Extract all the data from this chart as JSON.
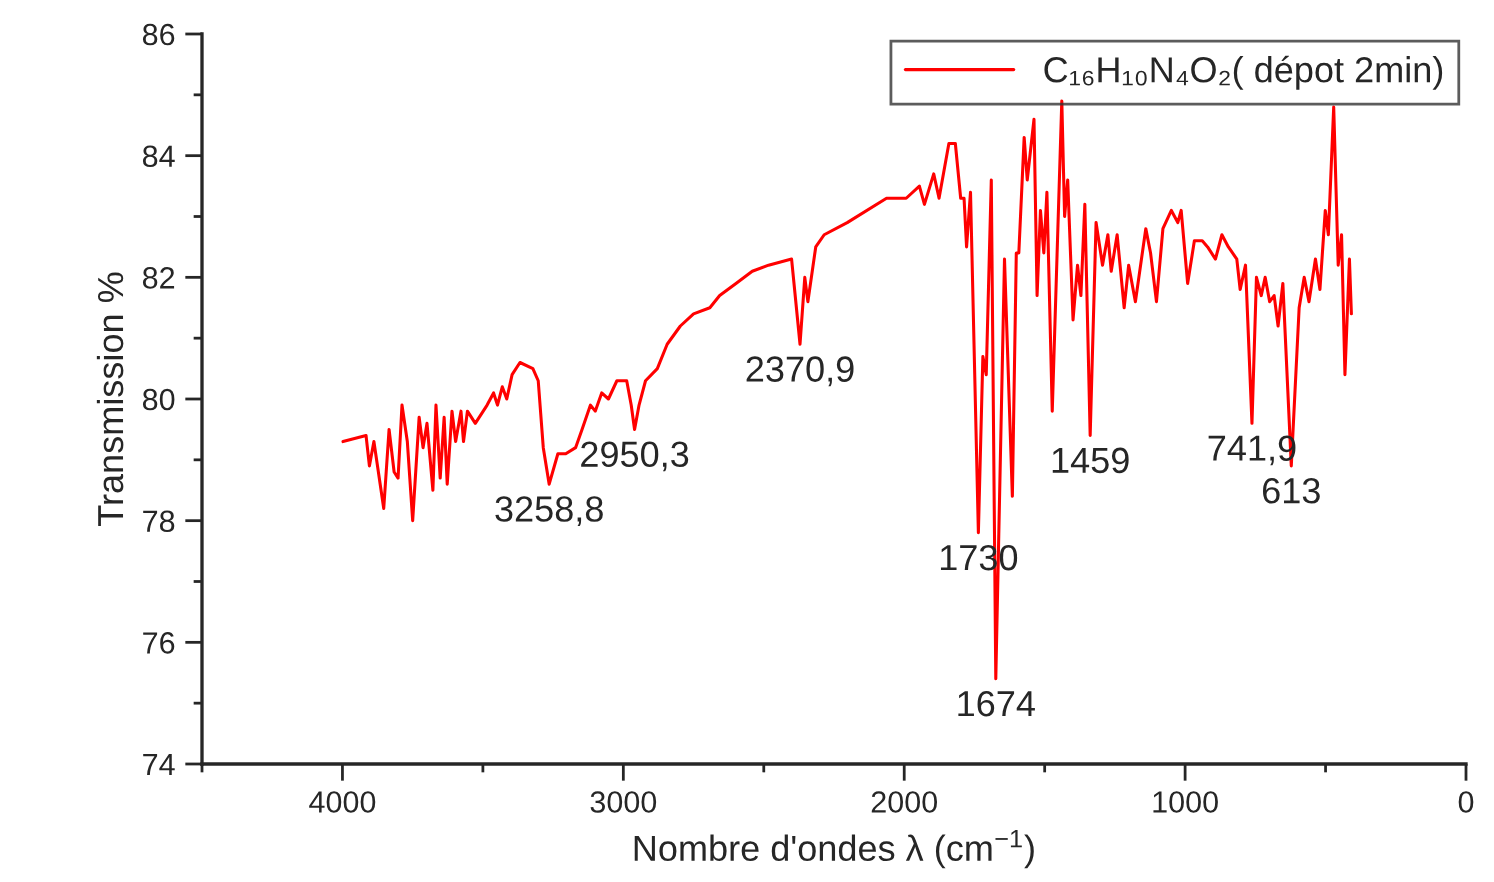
{
  "chart_data": {
    "type": "line",
    "xlabel": "Nombre d'ondes λ (cm$^{−1}$)",
    "ylabel": "Transmission %",
    "xlim": [
      4500,
      0
    ],
    "xticks": [
      {
        "value": 4500,
        "label": null
      },
      4000,
      {
        "value": 3500,
        "label": null
      },
      3000,
      {
        "value": 2500,
        "label": null
      },
      2000,
      {
        "value": 1500,
        "label": null
      },
      1000,
      {
        "value": 500,
        "label": null
      },
      0
    ],
    "ylim": [
      74,
      86
    ],
    "yticks": [
      74,
      {
        "value": 75,
        "label": null
      },
      76,
      {
        "value": 77,
        "label": null
      },
      78,
      {
        "value": 79,
        "label": null
      },
      80,
      {
        "value": 81,
        "label": null
      },
      82,
      {
        "value": 83,
        "label": null
      },
      84,
      {
        "value": 85,
        "label": null
      },
      86
    ],
    "grid": false,
    "legend": "top right",
    "marker": "none",
    "line_style": "solid",
    "series": [
      {
        "name": "C₁₆H₁₀N₄O₂( dépot 2min)",
        "color": "#ff0000",
        "x": [
          3998,
          3916,
          3904,
          3888,
          3853,
          3834,
          3816,
          3802,
          3788,
          3769,
          3750,
          3727,
          3713,
          3699,
          3678,
          3667,
          3652,
          3638,
          3627,
          3610,
          3597,
          3578,
          3569,
          3555,
          3527,
          3485,
          3462,
          3448,
          3431,
          3415,
          3396,
          3368,
          3322,
          3303,
          3285,
          3264,
          3233,
          3205,
          3170,
          3147,
          3117,
          3100,
          3077,
          3053,
          3023,
          2988,
          2972,
          2960,
          2944,
          2921,
          2879,
          2844,
          2797,
          2750,
          2692,
          2657,
          2599,
          2541,
          2483,
          2401,
          2371,
          2354,
          2343,
          2315,
          2285,
          2203,
          2063,
          1993,
          1946,
          1928,
          1895,
          1876,
          1841,
          1818,
          1799,
          1787,
          1778,
          1764,
          1736,
          1720,
          1708,
          1690,
          1674,
          1643,
          1615,
          1601,
          1592,
          1573,
          1562,
          1538,
          1527,
          1515,
          1503,
          1492,
          1473,
          1439,
          1429,
          1418,
          1399,
          1383,
          1371,
          1357,
          1338,
          1317,
          1294,
          1275,
          1263,
          1242,
          1217,
          1201,
          1177,
          1140,
          1123,
          1102,
          1079,
          1049,
          1026,
          1014,
          991,
          967,
          939,
          920,
          892,
          869,
          846,
          816,
          804,
          785,
          762,
          746,
          729,
          715,
          699,
          683,
          669,
          652,
          622,
          594,
          576,
          559,
          536,
          520,
          501,
          490,
          471,
          455,
          443,
          431,
          415,
          408
        ],
        "values": [
          79.3,
          79.4,
          78.9,
          79.3,
          78.2,
          79.5,
          78.8,
          78.7,
          79.9,
          79.3,
          78.0,
          79.7,
          79.2,
          79.6,
          78.5,
          79.9,
          78.7,
          79.7,
          78.6,
          79.8,
          79.3,
          79.8,
          79.3,
          79.8,
          79.6,
          79.9,
          80.1,
          79.9,
          80.2,
          80.0,
          80.4,
          80.6,
          80.5,
          80.3,
          79.2,
          78.6,
          79.1,
          79.1,
          79.2,
          79.5,
          79.9,
          79.8,
          80.1,
          80.0,
          80.3,
          80.3,
          79.9,
          79.5,
          79.9,
          80.3,
          80.5,
          80.9,
          81.2,
          81.4,
          81.5,
          81.7,
          81.9,
          82.1,
          82.2,
          82.3,
          80.9,
          82.0,
          81.6,
          82.5,
          82.7,
          82.9,
          83.3,
          83.3,
          83.5,
          83.2,
          83.7,
          83.3,
          84.2,
          84.2,
          83.3,
          83.3,
          82.5,
          83.4,
          77.8,
          80.7,
          80.4,
          83.6,
          75.4,
          82.3,
          78.4,
          82.4,
          82.4,
          84.3,
          83.6,
          84.6,
          81.7,
          83.1,
          82.4,
          83.4,
          79.8,
          84.9,
          83.0,
          83.6,
          81.3,
          82.2,
          81.7,
          83.2,
          79.4,
          82.9,
          82.2,
          82.7,
          82.1,
          82.7,
          81.5,
          82.2,
          81.6,
          82.8,
          82.4,
          81.6,
          82.8,
          83.1,
          82.9,
          83.1,
          81.9,
          82.6,
          82.6,
          82.5,
          82.3,
          82.7,
          82.5,
          82.3,
          81.8,
          82.2,
          79.6,
          82.0,
          81.7,
          82.0,
          81.6,
          81.7,
          81.2,
          81.9,
          78.9,
          81.5,
          82.0,
          81.6,
          82.3,
          81.8,
          83.1,
          82.7,
          84.8,
          82.2,
          82.7,
          80.4,
          82.3,
          81.4
        ]
      }
    ],
    "annotations": [
      {
        "text": "3258,8",
        "x": 3264,
        "y": 78.6
      },
      {
        "text": "2950,3",
        "x": 2960,
        "y": 79.5
      },
      {
        "text": "2370,9",
        "x": 2371,
        "y": 80.9
      },
      {
        "text": "1730",
        "x": 1736,
        "y": 77.8
      },
      {
        "text": "1674",
        "x": 1674,
        "y": 75.4
      },
      {
        "text": "1459",
        "x": 1338,
        "y": 79.4
      },
      {
        "text": "741,9",
        "x": 762,
        "y": 79.6
      },
      {
        "text": "613",
        "x": 622,
        "y": 78.9
      }
    ]
  }
}
